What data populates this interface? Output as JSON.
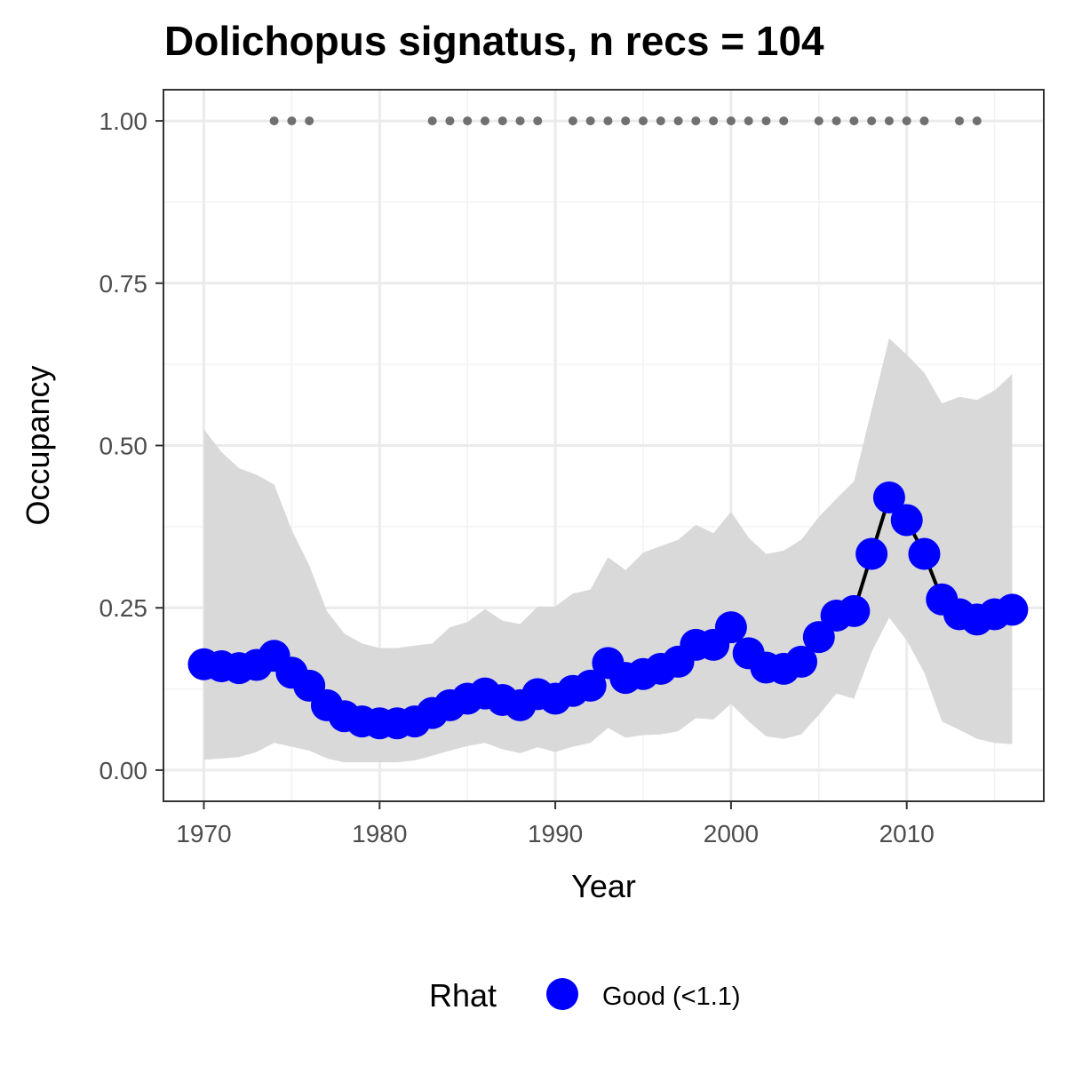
{
  "chart_data": {
    "type": "line",
    "title": "Dolichopus signatus, n recs = 104",
    "xlabel": "Year",
    "ylabel": "Occupancy",
    "xlim": [
      1967.7,
      2017.8
    ],
    "ylim": [
      -0.048,
      1.048
    ],
    "x_ticks": [
      1970,
      1980,
      1990,
      2000,
      2010
    ],
    "x_tick_labels": [
      "1970",
      "1980",
      "1990",
      "2000",
      "2010"
    ],
    "y_ticks": [
      0,
      0.25,
      0.5,
      0.75,
      1.0
    ],
    "y_tick_labels": [
      "0.00",
      "0.25",
      "0.50",
      "0.75",
      "1.00"
    ],
    "grid": true,
    "legend_position": "bottom",
    "legend": {
      "title": "Rhat",
      "entries": [
        {
          "label": "Good (<1.1)",
          "color": "#0000ff"
        }
      ]
    },
    "colors": {
      "points": "#0000ff",
      "line": "#000000",
      "ribbon": "#d9d9d9",
      "records": "#707070"
    },
    "series": [
      {
        "x": [
          1970,
          1971,
          1972,
          1973,
          1974,
          1975,
          1976,
          1977,
          1978,
          1979,
          1980,
          1981,
          1982,
          1983,
          1984,
          1985,
          1986,
          1987,
          1988,
          1989,
          1990,
          1991,
          1992,
          1993,
          1994,
          1995,
          1996,
          1997,
          1998,
          1999,
          2000,
          2001,
          2002,
          2003,
          2004,
          2005,
          2006,
          2007,
          2008,
          2009,
          2010,
          2011,
          2012,
          2013,
          2014,
          2015,
          2016
        ],
        "values": [
          0.163,
          0.16,
          0.157,
          0.162,
          0.176,
          0.15,
          0.13,
          0.1,
          0.083,
          0.075,
          0.072,
          0.072,
          0.075,
          0.088,
          0.1,
          0.11,
          0.118,
          0.108,
          0.1,
          0.117,
          0.11,
          0.122,
          0.13,
          0.165,
          0.142,
          0.148,
          0.156,
          0.167,
          0.193,
          0.193,
          0.22,
          0.18,
          0.158,
          0.156,
          0.167,
          0.205,
          0.238,
          0.245,
          0.333,
          0.42,
          0.385,
          0.333,
          0.263,
          0.24,
          0.232,
          0.24,
          0.247
        ],
        "lower": [
          0.016,
          0.018,
          0.02,
          0.028,
          0.042,
          0.036,
          0.03,
          0.018,
          0.012,
          0.012,
          0.012,
          0.012,
          0.015,
          0.022,
          0.03,
          0.037,
          0.042,
          0.032,
          0.026,
          0.035,
          0.028,
          0.036,
          0.042,
          0.065,
          0.05,
          0.054,
          0.055,
          0.06,
          0.08,
          0.078,
          0.102,
          0.075,
          0.052,
          0.048,
          0.055,
          0.085,
          0.118,
          0.11,
          0.182,
          0.235,
          0.2,
          0.15,
          0.075,
          0.062,
          0.048,
          0.042,
          0.04
        ],
        "upper": [
          0.525,
          0.49,
          0.465,
          0.455,
          0.44,
          0.37,
          0.315,
          0.245,
          0.21,
          0.195,
          0.188,
          0.188,
          0.192,
          0.195,
          0.22,
          0.228,
          0.248,
          0.23,
          0.225,
          0.252,
          0.252,
          0.272,
          0.278,
          0.328,
          0.308,
          0.335,
          0.345,
          0.355,
          0.378,
          0.365,
          0.398,
          0.358,
          0.333,
          0.338,
          0.355,
          0.39,
          0.418,
          0.445,
          0.555,
          0.665,
          0.64,
          0.612,
          0.565,
          0.575,
          0.57,
          0.585,
          0.61
        ]
      }
    ],
    "record_years": [
      1974,
      1975,
      1976,
      1983,
      1984,
      1985,
      1986,
      1987,
      1988,
      1989,
      1991,
      1992,
      1993,
      1994,
      1995,
      1996,
      1997,
      1998,
      1999,
      2000,
      2001,
      2002,
      2003,
      2005,
      2006,
      2007,
      2008,
      2009,
      2010,
      2011,
      2013,
      2014
    ],
    "record_value": 1.0
  }
}
